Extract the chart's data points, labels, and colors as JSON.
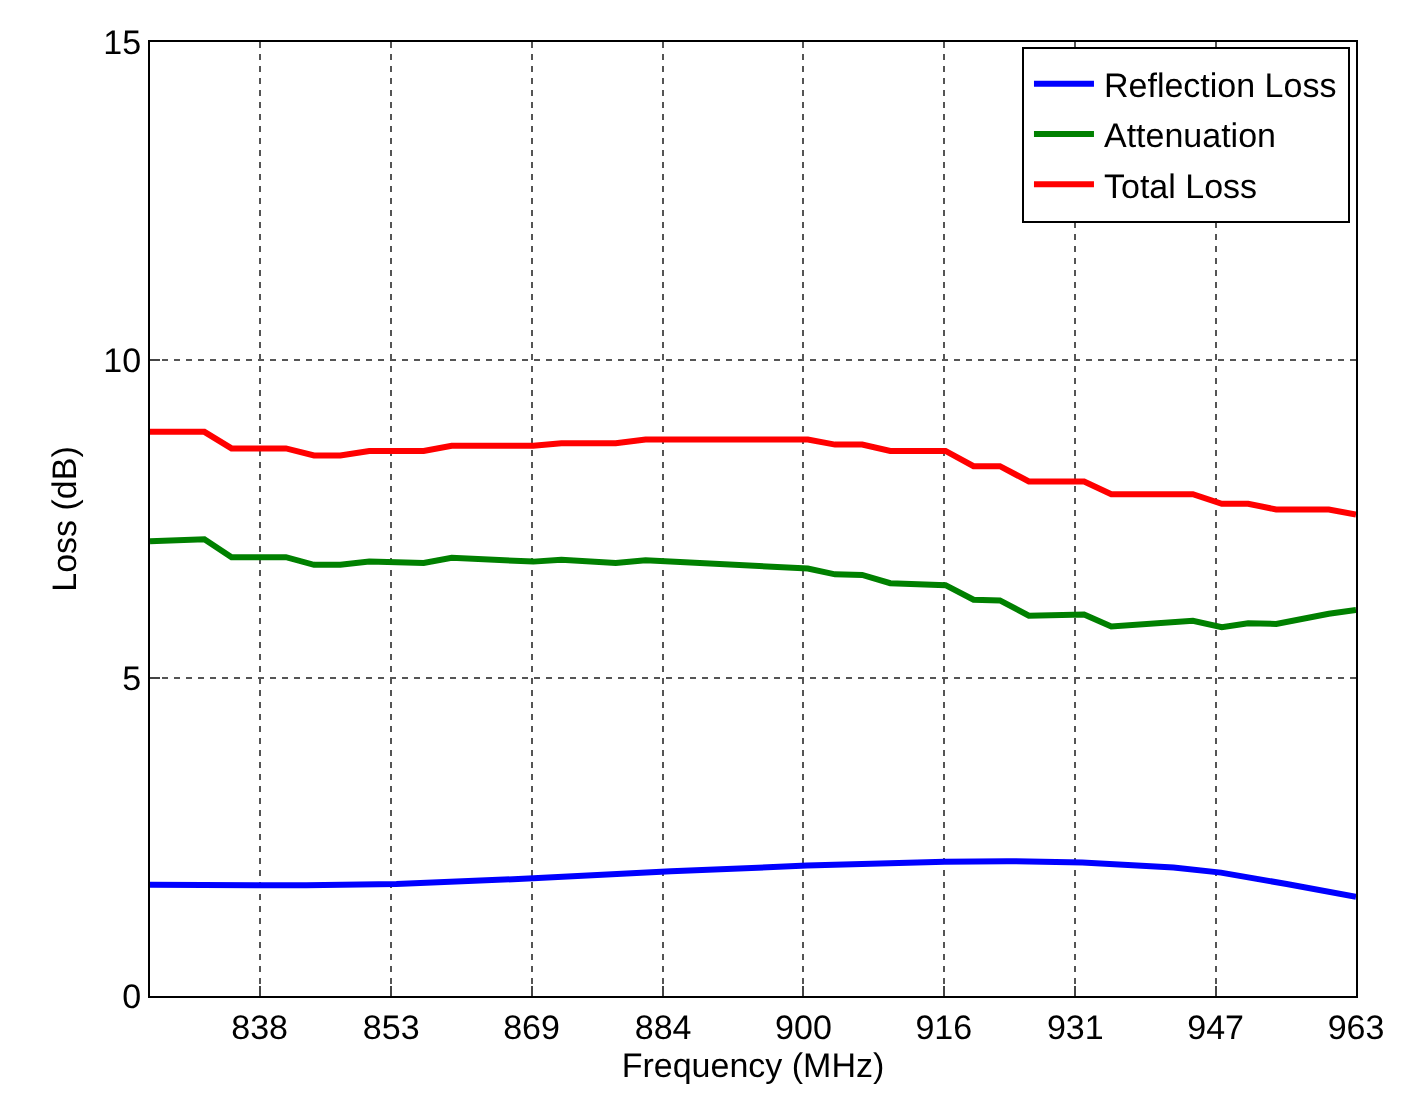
{
  "chart_data": {
    "type": "line",
    "xlabel": "Frequency (MHz)",
    "ylabel": "Loss (dB)",
    "xlim": [
      825.5,
      963
    ],
    "ylim": [
      0,
      15
    ],
    "xticks": [
      838,
      853,
      869,
      884,
      900,
      916,
      931,
      947,
      963
    ],
    "yticks": [
      0,
      5,
      10,
      15
    ],
    "grid": true,
    "legend": "top right",
    "line_style": "solid",
    "marker": "none",
    "series": [
      {
        "name": "Reflection Loss",
        "color": "#0000ff",
        "x": [
          825.5,
          838,
          843.3,
          853.6,
          869.2,
          884.9,
          900.4,
          916.1,
          923.2,
          931.8,
          942.2,
          947.6,
          955.1,
          963
        ],
        "values": [
          1.75,
          1.74,
          1.74,
          1.76,
          1.85,
          1.96,
          2.05,
          2.11,
          2.12,
          2.1,
          2.02,
          1.94,
          1.76,
          1.56
        ]
      },
      {
        "name": "Attenuation",
        "color": "#008000",
        "x": [
          825.5,
          831.7,
          834.8,
          841.0,
          844.2,
          847.2,
          850.5,
          856.7,
          859.9,
          869.2,
          872.4,
          878.6,
          882.0,
          900.5,
          903.6,
          906.7,
          909.9,
          916.2,
          919.4,
          922.4,
          925.7,
          932.0,
          935.1,
          944.4,
          947.7,
          950.7,
          953.9,
          959.9,
          963
        ],
        "values": [
          7.15,
          7.18,
          6.9,
          6.9,
          6.78,
          6.78,
          6.83,
          6.81,
          6.89,
          6.83,
          6.86,
          6.81,
          6.85,
          6.72,
          6.63,
          6.62,
          6.49,
          6.46,
          6.23,
          6.22,
          5.98,
          6.0,
          5.81,
          5.9,
          5.8,
          5.86,
          5.85,
          6.01,
          6.07
        ]
      },
      {
        "name": "Total Loss",
        "color": "#ff0000",
        "x": [
          825.5,
          831.7,
          834.8,
          841.0,
          844.2,
          847.2,
          850.5,
          856.7,
          859.9,
          869.2,
          872.4,
          878.6,
          882.0,
          900.5,
          903.6,
          906.7,
          909.9,
          916.2,
          919.4,
          922.4,
          925.7,
          932.0,
          935.1,
          944.4,
          947.7,
          950.7,
          953.9,
          959.9,
          963
        ],
        "values": [
          8.87,
          8.87,
          8.61,
          8.61,
          8.5,
          8.5,
          8.57,
          8.57,
          8.65,
          8.65,
          8.69,
          8.69,
          8.75,
          8.75,
          8.67,
          8.67,
          8.57,
          8.57,
          8.33,
          8.33,
          8.09,
          8.09,
          7.89,
          7.89,
          7.74,
          7.74,
          7.65,
          7.65,
          7.57
        ]
      }
    ]
  }
}
